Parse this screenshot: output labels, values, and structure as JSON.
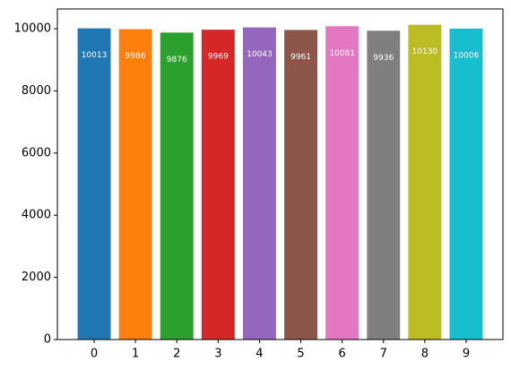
{
  "chart_data": {
    "type": "bar",
    "categories": [
      "0",
      "1",
      "2",
      "3",
      "4",
      "5",
      "6",
      "7",
      "8",
      "9"
    ],
    "values": [
      10013,
      9986,
      9876,
      9969,
      10043,
      9961,
      10081,
      9936,
      10130,
      10006
    ],
    "colors": [
      "#1f77b4",
      "#ff7f0e",
      "#2ca02c",
      "#d62728",
      "#9467bd",
      "#8c564b",
      "#e377c2",
      "#7f7f7f",
      "#bcbd22",
      "#17becf"
    ],
    "ylim": [
      0,
      10636.5
    ],
    "yticks": [
      0,
      2000,
      4000,
      6000,
      8000,
      10000
    ],
    "grid": false
  }
}
